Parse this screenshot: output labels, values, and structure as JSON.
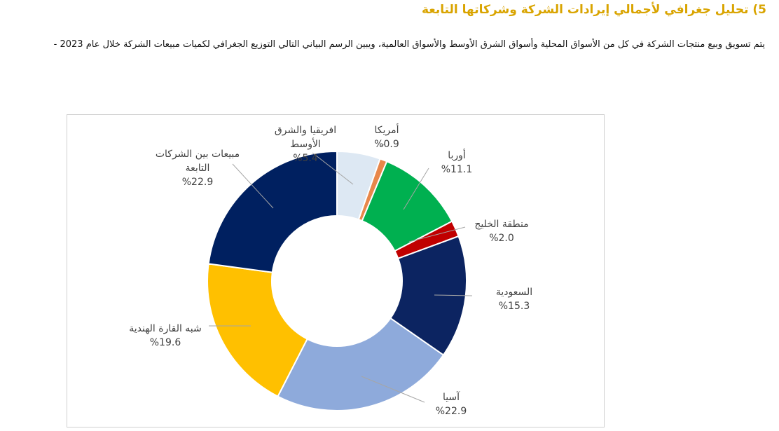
{
  "page": {
    "heading": "5) تحليل جغرافي لأجمالي إيرادات الشركة وشركاتها التابعة",
    "description": "يتم تسويق وبيع منتجات الشركة في كل من الأسواق المحلية وأسواق الشرق الأوسط والأسواق العالمية، ويبين الرسم البياني التالي التوزيع الجغرافي لكميات مبيعات الشركة خلال عام 2023 -"
  },
  "chart_data": {
    "type": "pie",
    "variant": "donut",
    "legend": "none",
    "series": [
      {
        "slices": [
          {
            "label": "افريقيا والشرق الأوسط",
            "value": 5.4,
            "value_label": "%5.4",
            "color": "#dde8f3"
          },
          {
            "label": "أمريكا",
            "value": 0.9,
            "value_label": "%0.9",
            "color": "#e8874a"
          },
          {
            "label": "أوربا",
            "value": 11.1,
            "value_label": "%11.1",
            "color": "#00b050"
          },
          {
            "label": "منطقة الخليج",
            "value": 2.0,
            "value_label": "%2.0",
            "color": "#c00000"
          },
          {
            "label": "السعودية",
            "value": 15.3,
            "value_label": "%15.3",
            "color": "#0c2461"
          },
          {
            "label": "آسيا",
            "value": 22.9,
            "value_label": "%22.9",
            "color": "#8eaadb"
          },
          {
            "label": "شبه القارة الهندية",
            "value": 19.6,
            "value_label": "%19.6",
            "color": "#ffc000"
          },
          {
            "label": "مبيعات بين الشركات التابعة",
            "value": 22.9,
            "value_label": "%22.9",
            "color": "#002060"
          }
        ]
      }
    ]
  }
}
